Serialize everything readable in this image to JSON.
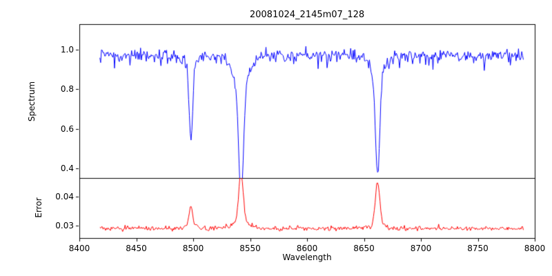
{
  "title": "20081024_2145m07_128",
  "xlabel": "Wavelength",
  "xlim": [
    8400,
    8800
  ],
  "xtick_values": [
    8400,
    8450,
    8500,
    8550,
    8600,
    8650,
    8700,
    8750,
    8800
  ],
  "xtick_labels": [
    "8400",
    "8450",
    "8500",
    "8550",
    "8600",
    "8650",
    "8700",
    "8750",
    "8800"
  ],
  "x_data_range": [
    8418,
    8790
  ],
  "n_points": 520,
  "axis_color": "#000000",
  "chart_data": [
    {
      "type": "line",
      "name": "spectrum",
      "ylabel": "Spectrum",
      "color": "#0000ff",
      "ylim": [
        0.35,
        1.13
      ],
      "ytick_values": [
        0.4,
        0.6,
        0.8,
        1.0
      ],
      "ytick_labels": [
        "0.4",
        "0.6",
        "0.8",
        "1.0"
      ],
      "continuum": 0.97,
      "noise_std": 0.016,
      "spike_prob": 0.05,
      "spike_depth": 0.07,
      "absorption_lines": [
        {
          "center": 8498,
          "depth_to": 0.6,
          "sigma": 1.6,
          "wing_frac": 0.05,
          "wing_sigma": 4
        },
        {
          "center": 8542,
          "depth_to": 0.4,
          "sigma": 2.0,
          "wing_frac": 0.16,
          "wing_sigma": 7
        },
        {
          "center": 8662,
          "depth_to": 0.47,
          "sigma": 1.9,
          "wing_frac": 0.1,
          "wing_sigma": 6
        }
      ]
    },
    {
      "type": "line",
      "name": "error",
      "ylabel": "Error",
      "color": "#ff0000",
      "ylim": [
        0.0256,
        0.0466
      ],
      "ytick_values": [
        0.03,
        0.04
      ],
      "ytick_labels": [
        "0.03",
        "0.04"
      ],
      "baseline": 0.029,
      "noise_std": 0.00042,
      "peaks": [
        {
          "center": 8498,
          "amp": 0.0068,
          "sigma": 1.6,
          "wing_amp": 0.0008,
          "wing_sigma": 5
        },
        {
          "center": 8542,
          "amp": 0.0168,
          "sigma": 2.0,
          "wing_amp": 0.0022,
          "wing_sigma": 7
        },
        {
          "center": 8662,
          "amp": 0.0148,
          "sigma": 1.9,
          "wing_amp": 0.0015,
          "wing_sigma": 6
        }
      ]
    }
  ]
}
